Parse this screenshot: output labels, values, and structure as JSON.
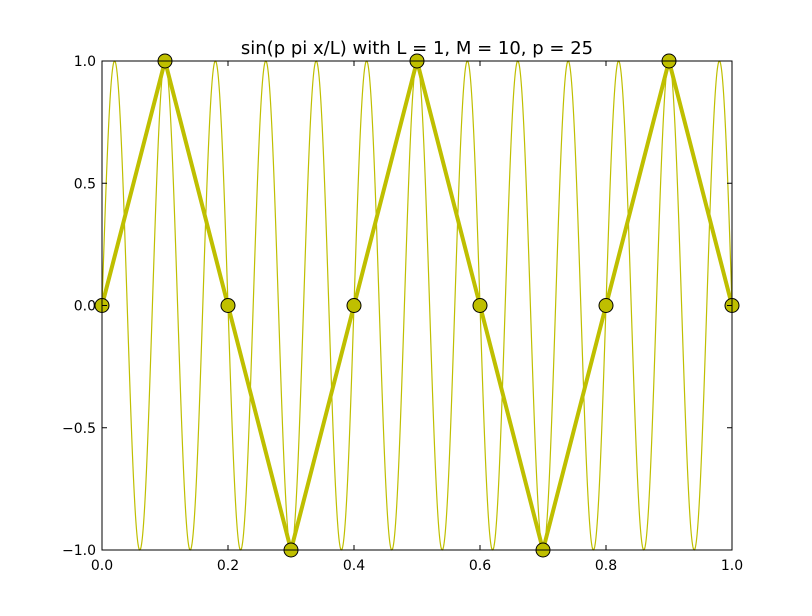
{
  "chart_data": {
    "type": "line",
    "title": "sin(p pi x/L) with L = 1, M = 10, p = 25",
    "xlabel": "",
    "ylabel": "",
    "xlim": [
      0.0,
      1.0
    ],
    "ylim": [
      -1.0,
      1.0
    ],
    "grid": false,
    "legend": "none",
    "x_ticks": [
      "0.0",
      "0.2",
      "0.4",
      "0.6",
      "0.8",
      "1.0"
    ],
    "y_ticks": [
      "1.0",
      "0.5",
      "0.0",
      "−0.5",
      "−1.0"
    ],
    "color": "#bfbf00",
    "marker_color": "#bfbf00",
    "continuous_curve": {
      "function": "sin(p*pi*x/L)",
      "L": 1,
      "p": 25
    },
    "series": [
      {
        "x": [
          0.0,
          0.1,
          0.2,
          0.3,
          0.4,
          0.5,
          0.6,
          0.7,
          0.8,
          0.9,
          1.0
        ],
        "values": [
          0.0,
          1.0,
          0.0,
          -1.0,
          0.0,
          1.0,
          0.0,
          -1.0,
          0.0,
          1.0,
          0.0
        ]
      }
    ]
  }
}
